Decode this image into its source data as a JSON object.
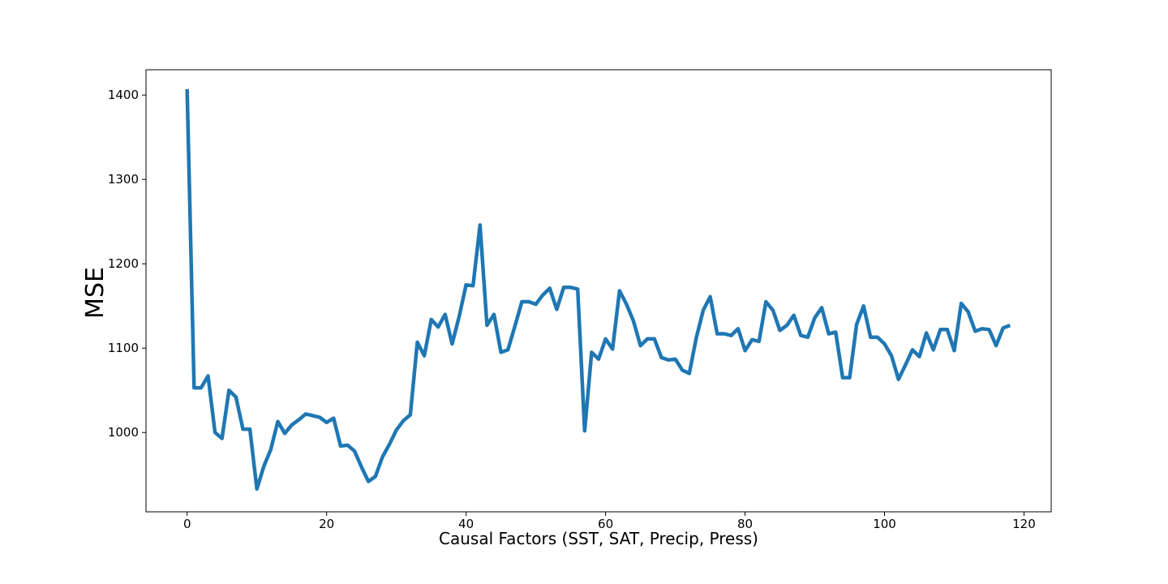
{
  "chart_data": {
    "type": "line",
    "title": "",
    "xlabel": "Causal Factors (SST, SAT, Precip, Press)",
    "ylabel": "MSE",
    "xlim": [
      -5.9,
      123.9
    ],
    "ylim": [
      906,
      1430
    ],
    "xticks": [
      0,
      20,
      40,
      60,
      80,
      100,
      120
    ],
    "yticks": [
      1000,
      1100,
      1200,
      1300,
      1400
    ],
    "grid": false,
    "line_color": "#1f77b4",
    "series": [
      {
        "x": [
          0,
          1,
          2,
          3,
          4,
          5,
          6,
          7,
          8,
          9,
          10,
          11,
          12,
          13,
          14,
          15,
          16,
          17,
          18,
          19,
          20,
          21,
          22,
          23,
          24,
          25,
          26,
          27,
          28,
          29,
          30,
          31,
          32,
          33,
          34,
          35,
          36,
          37,
          38,
          39,
          40,
          41,
          42,
          43,
          44,
          45,
          46,
          47,
          48,
          49,
          50,
          51,
          52,
          53,
          54,
          55,
          56,
          57,
          58,
          59,
          60,
          61,
          62,
          63,
          64,
          65,
          66,
          67,
          68,
          69,
          70,
          71,
          72,
          73,
          74,
          75,
          76,
          77,
          78,
          79,
          80,
          81,
          82,
          83,
          84,
          85,
          86,
          87,
          88,
          89,
          90,
          91,
          92,
          93,
          94,
          95,
          96,
          97,
          98,
          99,
          100,
          101,
          102,
          103,
          104,
          105,
          106,
          107,
          108,
          109,
          110,
          111,
          112,
          113,
          114,
          115,
          116,
          117,
          118
        ],
        "values": [
          1407,
          1053,
          1053,
          1067,
          1000,
          993,
          1050,
          1042,
          1004,
          1004,
          933,
          960,
          980,
          1013,
          999,
          1009,
          1015,
          1022,
          1020,
          1018,
          1012,
          1017,
          984,
          985,
          978,
          959,
          942,
          948,
          971,
          986,
          1003,
          1014,
          1021,
          1107,
          1091,
          1134,
          1125,
          1140,
          1105,
          1137,
          1175,
          1174,
          1246,
          1127,
          1140,
          1095,
          1098,
          1126,
          1155,
          1155,
          1152,
          1163,
          1171,
          1146,
          1172,
          1172,
          1170,
          1002,
          1095,
          1087,
          1111,
          1099,
          1168,
          1152,
          1132,
          1103,
          1111,
          1111,
          1089,
          1086,
          1087,
          1074,
          1070,
          1112,
          1145,
          1161,
          1117,
          1117,
          1115,
          1123,
          1097,
          1110,
          1108,
          1155,
          1145,
          1121,
          1127,
          1139,
          1115,
          1113,
          1136,
          1148,
          1117,
          1119,
          1065,
          1065,
          1128,
          1150,
          1113,
          1113,
          1105,
          1091,
          1063,
          1080,
          1098,
          1090,
          1118,
          1098,
          1122,
          1122,
          1097,
          1153,
          1143,
          1120,
          1123,
          1122,
          1103,
          1124,
          1127
        ]
      }
    ]
  }
}
